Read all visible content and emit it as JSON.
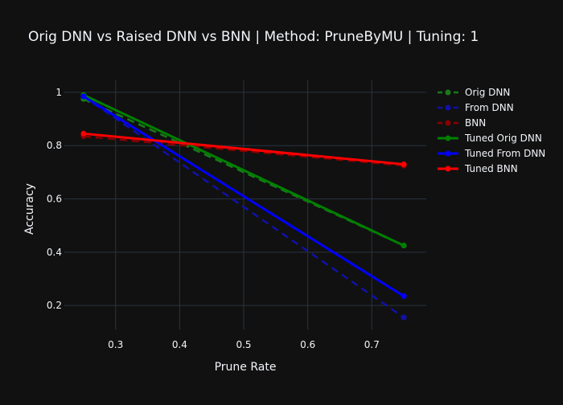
{
  "chart_data": {
    "type": "line",
    "title": "Orig DNN vs Raised DNN vs BNN | Method: PruneByMU | Tuning: 1",
    "xlabel": "Prune Rate",
    "ylabel": "Accuracy",
    "xlim": [
      0.22,
      0.785
    ],
    "ylim": [
      0.11,
      1.045
    ],
    "x_ticks": [
      0.3,
      0.4,
      0.5,
      0.6,
      0.7
    ],
    "x_tick_labels": [
      "0.3",
      "0.4",
      "0.5",
      "0.6",
      "0.7"
    ],
    "y_ticks": [
      0.2,
      0.4,
      0.6,
      0.8,
      1.0
    ],
    "y_tick_labels": [
      "0.2",
      "0.4",
      "0.6",
      "0.8",
      "1"
    ],
    "grid": true,
    "legend_position": "top-right",
    "x": [
      0.25,
      0.75
    ],
    "series": [
      {
        "name": "Orig DNN",
        "values": [
          0.975,
          0.425
        ],
        "color": "#1a7a1a",
        "dash": "dash",
        "marker": true
      },
      {
        "name": "From DNN",
        "values": [
          0.985,
          0.155
        ],
        "color": "#1111aa",
        "dash": "dash",
        "marker": true
      },
      {
        "name": "BNN",
        "values": [
          0.835,
          0.725
        ],
        "color": "#8b0000",
        "dash": "dash",
        "marker": true
      },
      {
        "name": "Tuned Orig DNN",
        "values": [
          0.99,
          0.425
        ],
        "color": "#008000",
        "dash": "solid",
        "marker": true
      },
      {
        "name": "Tuned From DNN",
        "values": [
          0.985,
          0.235
        ],
        "color": "#0000ff",
        "dash": "solid",
        "marker": true
      },
      {
        "name": "Tuned BNN",
        "values": [
          0.845,
          0.73
        ],
        "color": "#ff0000",
        "dash": "solid",
        "marker": true
      }
    ]
  }
}
